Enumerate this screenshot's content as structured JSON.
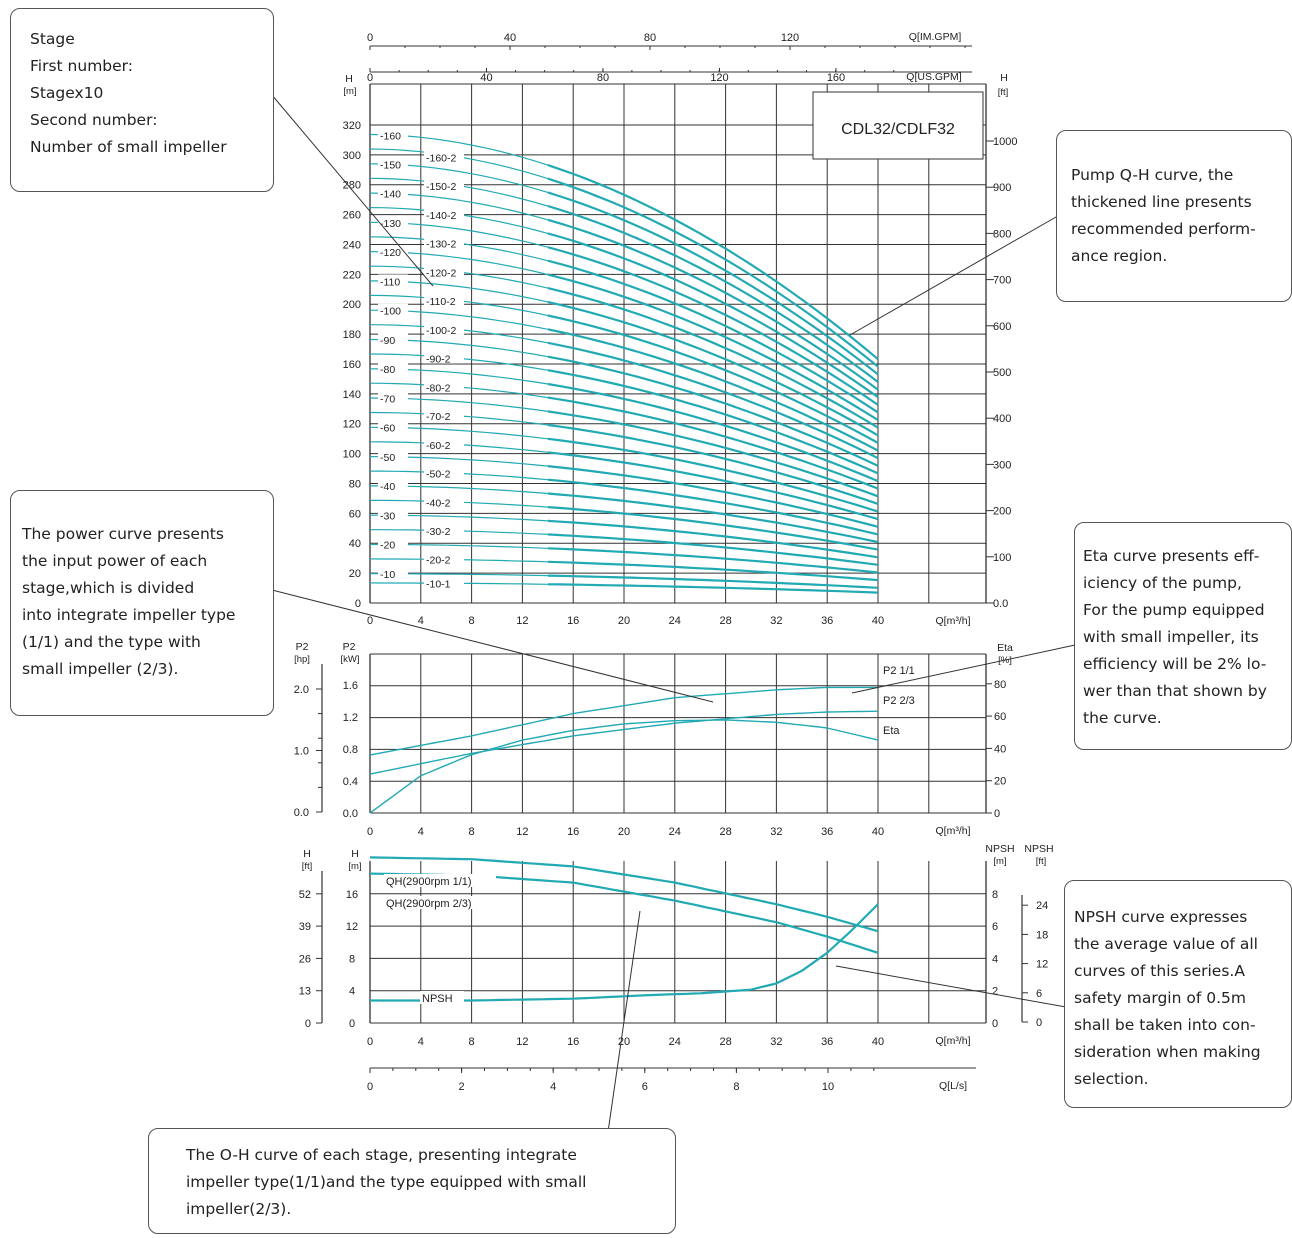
{
  "model_label": "CDL32/CDLF32",
  "callouts": {
    "stage": [
      "Stage",
      "First number:",
      "Stagex10",
      "Second number:",
      "Number of small impeller"
    ],
    "qh_curve": [
      "Pump Q-H curve, the",
      "thickened line presents",
      "recommended perform-",
      "ance region."
    ],
    "power": [
      "The power curve presents",
      "the input power of each",
      "stage,which is divided",
      "into integrate impeller type",
      "(1/1) and the type with",
      "small impeller (2/3)."
    ],
    "eta": [
      "Eta curve presents eff-",
      "iciency of the pump,",
      "For the pump equipped",
      "with small impeller, its",
      "efficiency will be 2% lo-",
      "wer than that shown by",
      "the curve."
    ],
    "npsh": [
      "NPSH curve expresses",
      "the average value of all",
      "curves of this series.A",
      "safety margin of 0.5m",
      "shall be taken into con-",
      "sideration when making",
      "selection."
    ],
    "oh": [
      "The O-H curve of each stage, presenting integrate",
      "impeller type(1/1)and the type equipped with small",
      "impeller(2/3)."
    ]
  },
  "colors": {
    "curve": "#22aab4",
    "grid": "#333333",
    "text": "#222222"
  },
  "chart_data": [
    {
      "type": "line",
      "name": "qh-stage-curves",
      "x_ticks": [
        "0",
        "4",
        "8",
        "12",
        "16",
        "20",
        "24",
        "28",
        "32",
        "36",
        "40"
      ],
      "xlabel": "Q[m³/h]",
      "xlim": [
        0,
        40
      ],
      "top_axis_imgpm": {
        "label": "Q[IM.GPM]",
        "ticks": [
          "0",
          "40",
          "80",
          "120"
        ]
      },
      "top_axis_usgpm": {
        "label": "Q[US.GPM]",
        "ticks": [
          "0",
          "40",
          "80",
          "120",
          "160"
        ]
      },
      "y_left": {
        "label": [
          "H",
          "[m]"
        ],
        "ticks": [
          "0",
          "20",
          "40",
          "60",
          "80",
          "100",
          "120",
          "140",
          "160",
          "180",
          "200",
          "220",
          "240",
          "260",
          "280",
          "300",
          "320"
        ],
        "lim": [
          0,
          330
        ]
      },
      "y_right": {
        "label": [
          "H",
          "[ft]"
        ],
        "ticks": [
          "0.0",
          "100",
          "200",
          "300",
          "400",
          "500",
          "600",
          "700",
          "800",
          "900",
          "1000"
        ]
      },
      "stage_labels": [
        "160",
        "160-2",
        "150",
        "150-2",
        "140",
        "140-2",
        "130",
        "130-2",
        "120",
        "120-2",
        "110",
        "110-2",
        "100",
        "100-2",
        "90",
        "90-2",
        "80",
        "80-2",
        "70",
        "70-2",
        "60",
        "60-2",
        "50",
        "50-2",
        "40",
        "40-2",
        "30",
        "30-2",
        "20",
        "20-2",
        "10",
        "10-1"
      ],
      "shutoff_head_per_10": 19.6,
      "head_at_40_per_10": 10.2
    },
    {
      "type": "line",
      "name": "power-eta",
      "x_ticks": [
        "0",
        "4",
        "8",
        "12",
        "16",
        "20",
        "24",
        "28",
        "32",
        "36",
        "40"
      ],
      "xlabel": "Q[m³/h]",
      "y_hp": {
        "label": [
          "P2",
          "[hp]"
        ],
        "ticks": [
          "0.0",
          "1.0",
          "2.0"
        ]
      },
      "y_kw": {
        "label": [
          "P2",
          "[kW]"
        ],
        "ticks": [
          "0.0",
          "0.4",
          "0.8",
          "1.2",
          "1.6"
        ],
        "lim": [
          0,
          2.0
        ]
      },
      "y_eta": {
        "label": [
          "Eta",
          "[%]"
        ],
        "ticks": [
          "0",
          "20",
          "40",
          "60",
          "80"
        ],
        "lim": [
          0,
          100
        ]
      },
      "series": [
        {
          "name": "P2 1/1",
          "axis": "kw",
          "x": [
            0,
            8,
            16,
            24,
            32,
            36,
            40
          ],
          "y": [
            0.73,
            0.97,
            1.25,
            1.45,
            1.55,
            1.58,
            1.58
          ]
        },
        {
          "name": "P2 2/3",
          "axis": "kw",
          "x": [
            0,
            8,
            16,
            24,
            32,
            36,
            40
          ],
          "y": [
            0.49,
            0.75,
            0.97,
            1.13,
            1.24,
            1.27,
            1.28
          ]
        },
        {
          "name": "Eta",
          "axis": "eta",
          "x": [
            0,
            4,
            8,
            12,
            16,
            20,
            24,
            28,
            32,
            36,
            40
          ],
          "y": [
            0,
            23,
            36,
            45,
            51,
            55,
            57,
            57.5,
            56,
            52.5,
            45
          ]
        }
      ]
    },
    {
      "type": "line",
      "name": "qh-npsh",
      "x_ticks": [
        "0",
        "4",
        "8",
        "12",
        "16",
        "20",
        "24",
        "28",
        "32",
        "36",
        "40"
      ],
      "xlabel": "Q[m³/h]",
      "x_ls": {
        "label": "Q[L/s]",
        "ticks": [
          "0",
          "2",
          "4",
          "6",
          "8",
          "10"
        ]
      },
      "y_ft": {
        "label": [
          "H",
          "[ft]"
        ],
        "ticks": [
          "0",
          "13",
          "26",
          "39",
          "52"
        ]
      },
      "y_m": {
        "label": [
          "H",
          "[m]"
        ],
        "ticks": [
          "0",
          "4",
          "8",
          "12",
          "16"
        ],
        "lim": [
          0,
          18
        ]
      },
      "y_npsh_m": {
        "label": [
          "NPSH",
          "[m]"
        ],
        "ticks": [
          "0",
          "2",
          "4",
          "6",
          "8"
        ],
        "lim": [
          0,
          9
        ]
      },
      "y_npsh_ft": {
        "label": [
          "NPSH",
          "[ft]"
        ],
        "ticks": [
          "0",
          "6",
          "12",
          "18",
          "24"
        ]
      },
      "series": [
        {
          "name": "QH(2900rpm 1/1)",
          "axis": "m",
          "x": [
            0,
            8,
            16,
            24,
            32,
            36,
            40
          ],
          "y": [
            18.4,
            18.2,
            17.4,
            15.6,
            13.2,
            11.8,
            10.2
          ]
        },
        {
          "name": "QH(2900rpm 2/3)",
          "axis": "m",
          "x": [
            0,
            8,
            16,
            24,
            32,
            36,
            40
          ],
          "y": [
            16.6,
            16.4,
            15.6,
            13.6,
            11.2,
            9.6,
            7.8
          ]
        },
        {
          "name": "NPSH",
          "axis": "npsh",
          "x": [
            0,
            8,
            16,
            22,
            26,
            30,
            32,
            34,
            36,
            38,
            40
          ],
          "y": [
            1.25,
            1.25,
            1.35,
            1.55,
            1.65,
            1.85,
            2.2,
            2.9,
            3.9,
            5.2,
            6.6
          ]
        }
      ]
    }
  ]
}
